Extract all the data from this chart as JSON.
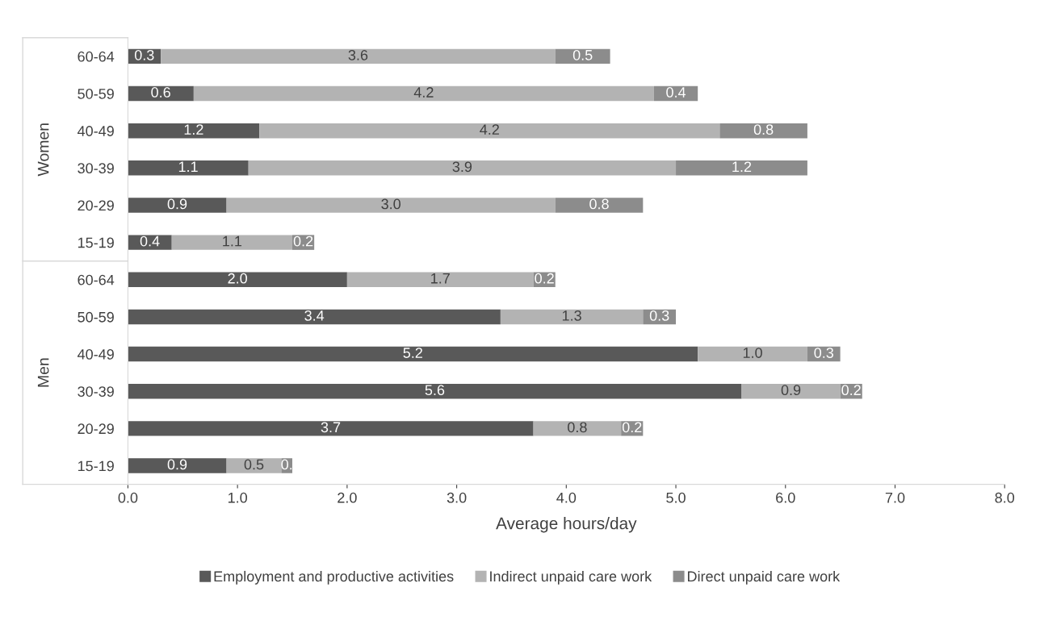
{
  "chart_data": {
    "type": "bar",
    "orientation": "horizontal",
    "stacked": true,
    "xlabel": "Average hours/day",
    "categories": [
      "60-64",
      "50-59",
      "40-49",
      "30-39",
      "20-29",
      "15-19",
      "60-64",
      "50-59",
      "40-49",
      "30-39",
      "20-29",
      "15-19"
    ],
    "annotations": [
      "Women",
      "Men"
    ],
    "series": [
      {
        "name": "Employment and productive activities",
        "color": "#595959",
        "values": [
          0.3,
          0.6,
          1.2,
          1.1,
          0.9,
          0.4,
          2.0,
          3.4,
          5.2,
          5.6,
          3.7,
          0.9
        ],
        "value_labels": [
          "0.3",
          "0.6",
          "1.2",
          "1.1",
          "0.9",
          "0.4",
          "2.0",
          "3.4",
          "5.2",
          "5.6",
          "3.7",
          "0.9"
        ]
      },
      {
        "name": "Indirect unpaid care work",
        "color": "#b3b3b3",
        "values": [
          3.6,
          4.2,
          4.2,
          3.9,
          3.0,
          1.1,
          1.7,
          1.3,
          1.0,
          0.9,
          0.8,
          0.5
        ],
        "value_labels": [
          "3.6",
          "4.2",
          "4.2",
          "3.9",
          "3.0",
          "1.1",
          "1.7",
          "1.3",
          "1.0",
          "0.9",
          "0.8",
          "0.5"
        ]
      },
      {
        "name": "Direct unpaid care work",
        "color": "#8c8c8c",
        "values": [
          0.5,
          0.4,
          0.8,
          1.2,
          0.8,
          0.2,
          0.2,
          0.3,
          0.3,
          0.2,
          0.2,
          0.1
        ],
        "value_labels": [
          "0.5",
          "0.4",
          "0.8",
          "1.2",
          "0.8",
          "0.2",
          "0.2",
          "0.3",
          "0.3",
          "0.2",
          "0.2",
          "0."
        ]
      }
    ],
    "xlim": [
      0,
      8
    ],
    "xticks": [
      {
        "value": 0,
        "label": "0.0"
      },
      {
        "value": 1,
        "label": "1.0"
      },
      {
        "value": 2,
        "label": "2.0"
      },
      {
        "value": 3,
        "label": "3.0"
      },
      {
        "value": 4,
        "label": "4.0"
      },
      {
        "value": 5,
        "label": "5.0"
      },
      {
        "value": 6,
        "label": "6.0"
      },
      {
        "value": 7,
        "label": "7.0"
      },
      {
        "value": 8,
        "label": "8.0"
      }
    ],
    "grid": false,
    "legend": "bottom"
  }
}
